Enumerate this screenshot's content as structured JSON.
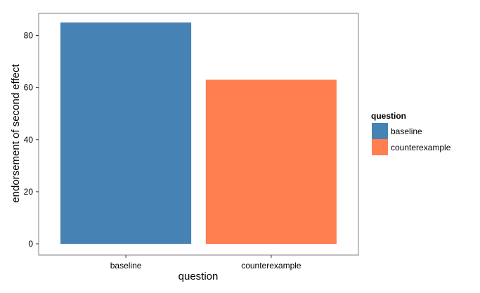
{
  "chart_data": {
    "type": "bar",
    "categories": [
      "baseline",
      "counterexample"
    ],
    "values": [
      85,
      63
    ],
    "colors": [
      "#4682b4",
      "#ff7f50"
    ],
    "xlabel": "question",
    "ylabel": "endorsement of second effect",
    "ylim": [
      0,
      88.5
    ],
    "yticks": [
      0,
      20,
      40,
      60,
      80
    ],
    "grid": false,
    "legend": {
      "title": "question",
      "placement": "right",
      "entries": [
        "baseline",
        "counterexample"
      ]
    }
  }
}
